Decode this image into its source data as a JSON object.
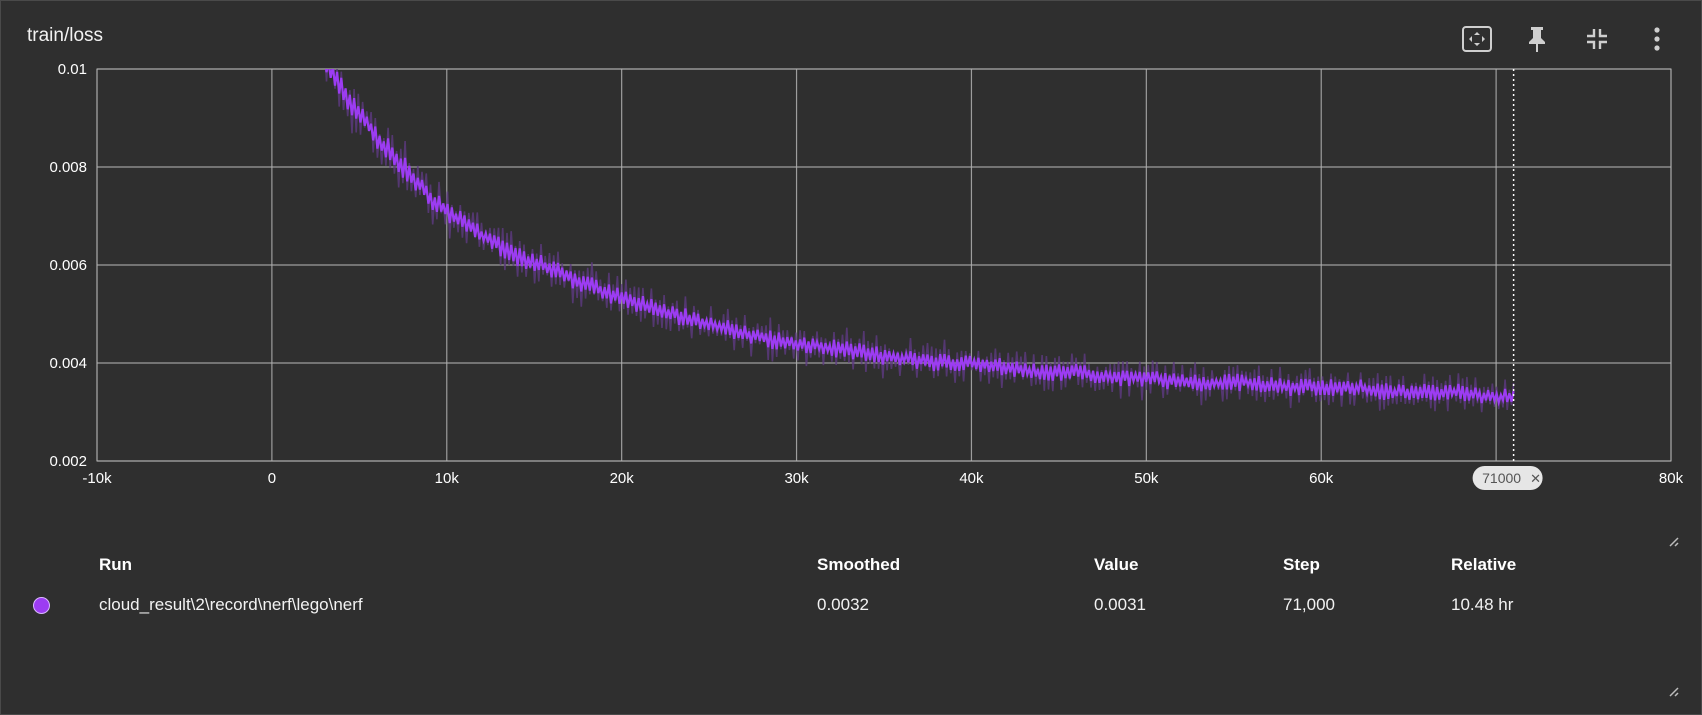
{
  "card": {
    "title": "train/loss",
    "toolbar": [
      {
        "name": "fit-domain",
        "icon": "fit-to-data-icon"
      },
      {
        "name": "pin",
        "icon": "pin-icon"
      },
      {
        "name": "collapse",
        "icon": "collapse-icon"
      },
      {
        "name": "more",
        "icon": "more-vert-icon"
      }
    ]
  },
  "chart_data": {
    "type": "line",
    "title": "",
    "xlabel": "",
    "ylabel": "",
    "xlim": [
      -10000,
      80000
    ],
    "ylim": [
      0.002,
      0.01
    ],
    "x_ticks": [
      -10000,
      0,
      10000,
      20000,
      30000,
      40000,
      50000,
      60000,
      70000,
      80000
    ],
    "x_tick_labels": [
      "-10k",
      "0",
      "10k",
      "20k",
      "30k",
      "40k",
      "50k",
      "60k",
      "70k",
      "80k"
    ],
    "y_ticks": [
      0.002,
      0.004,
      0.006,
      0.008,
      0.01
    ],
    "y_tick_labels": [
      "0.002",
      "0.004",
      "0.006",
      "0.008",
      "0.01"
    ],
    "grid": true,
    "colors": {
      "smoothed": "#9c3cf2",
      "raw": "#5e3a82",
      "background": "#2f2f2f",
      "grid": "#b0b0b0"
    },
    "series": [
      {
        "name": "cloud_result\\2\\record\\nerf\\lego\\nerf",
        "x": [
          3000,
          4000,
          5000,
          6000,
          7000,
          8000,
          9000,
          10000,
          12000,
          14000,
          16000,
          18000,
          20000,
          22000,
          24000,
          26000,
          28000,
          30000,
          32000,
          34000,
          36000,
          38000,
          40000,
          42000,
          44000,
          46000,
          48000,
          50000,
          52000,
          54000,
          56000,
          58000,
          60000,
          62000,
          64000,
          66000,
          68000,
          70000,
          71000
        ],
        "values": [
          0.0101,
          0.0096,
          0.0091,
          0.0086,
          0.0082,
          0.0078,
          0.0074,
          0.0071,
          0.0066,
          0.0062,
          0.0059,
          0.0056,
          0.0053,
          0.0051,
          0.0049,
          0.0047,
          0.0045,
          0.0044,
          0.0043,
          0.0042,
          0.0041,
          0.004,
          0.004,
          0.0039,
          0.0038,
          0.0038,
          0.0037,
          0.0037,
          0.0036,
          0.0036,
          0.0036,
          0.0035,
          0.0035,
          0.0035,
          0.0034,
          0.0034,
          0.0034,
          0.0033,
          0.0033
        ],
        "noise_amplitude": 0.0005
      }
    ],
    "hover": {
      "step": 71000,
      "step_label": "71000",
      "close_glyph": "✕"
    }
  },
  "table": {
    "headers": {
      "run": "Run",
      "smoothed": "Smoothed",
      "value": "Value",
      "step": "Step",
      "relative": "Relative"
    },
    "rows": [
      {
        "color": "#9c3cf2",
        "run": "cloud_result\\2\\record\\nerf\\lego\\nerf",
        "smoothed": "0.0032",
        "value": "0.0031",
        "step": "71,000",
        "relative": "10.48 hr"
      }
    ]
  }
}
